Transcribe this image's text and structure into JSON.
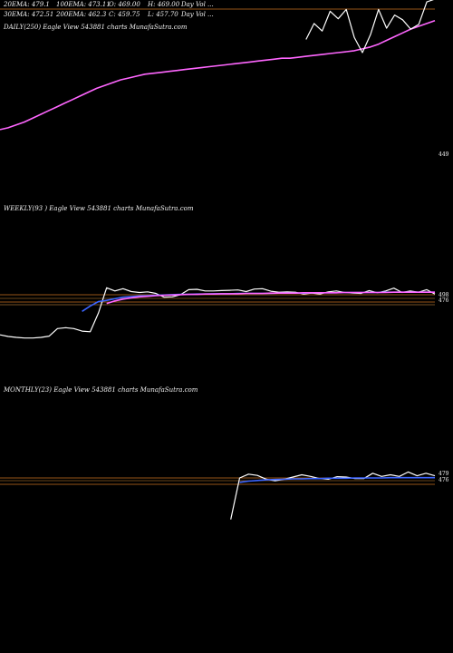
{
  "chart_data": [
    {
      "type": "line",
      "title": "DAILY(250) Eagle  View  543881 charts MunafaSutra.com",
      "legend_row1": [
        "20EMA: 479.1",
        "100EMA: 473.11",
        "O: 469.00",
        "H: 469.00",
        "Day Vol ..."
      ],
      "legend_row2": [
        "30EMA: 472.51",
        "200EMA: 462.3",
        "C: 459.75",
        "L: 457.70",
        "Day Vol ..."
      ],
      "y_tick_right": "449",
      "ylim": [
        400,
        540
      ],
      "series": [
        {
          "color": "#ff66ff",
          "values": [
            402,
            404,
            407,
            410,
            414,
            418,
            422,
            426,
            430,
            434,
            438,
            442,
            446,
            449,
            452,
            455,
            457,
            459,
            461,
            462,
            463,
            464,
            465,
            466,
            467,
            468,
            469,
            470,
            471,
            472,
            473,
            474,
            475,
            476,
            477,
            478,
            478,
            479,
            480,
            481,
            482,
            483,
            484,
            485,
            486,
            488,
            490,
            493,
            497,
            501,
            505,
            509,
            512,
            515,
            518
          ]
        },
        {
          "color": "#ffffff",
          "values": [
            null,
            null,
            null,
            null,
            null,
            null,
            null,
            null,
            null,
            null,
            null,
            null,
            null,
            null,
            null,
            null,
            null,
            null,
            null,
            null,
            null,
            null,
            null,
            null,
            null,
            null,
            null,
            null,
            null,
            null,
            null,
            null,
            null,
            null,
            null,
            null,
            null,
            null,
            498,
            515,
            507,
            528,
            520,
            530,
            500,
            484,
            503,
            530,
            510,
            524,
            519,
            509,
            514,
            538,
            541
          ]
        }
      ]
    },
    {
      "type": "line",
      "title": "WEEKLY(93                    ) Eagle  View  543881 charts MunafaSutra.com",
      "y_tick_labels": [
        "498",
        "476"
      ],
      "ylim": [
        300,
        560
      ],
      "series": [
        {
          "color": "#ffffff",
          "values": [
            360,
            355,
            352,
            350,
            350,
            352,
            356,
            380,
            383,
            380,
            372,
            370,
            430,
            510,
            500,
            507,
            498,
            495,
            497,
            492,
            480,
            481,
            488,
            504,
            505,
            500,
            500,
            501,
            502,
            503,
            498,
            506,
            507,
            499,
            496,
            497,
            496,
            490,
            493,
            490,
            497,
            500,
            495,
            493,
            492,
            501,
            494,
            500,
            509,
            495,
            500,
            496,
            504,
            490
          ]
        },
        {
          "color": "#3b64ff",
          "values": [
            null,
            null,
            null,
            null,
            null,
            null,
            null,
            null,
            null,
            null,
            435,
            452,
            466,
            470,
            475,
            480,
            482,
            484,
            485,
            486,
            487,
            488,
            489,
            489,
            490,
            490,
            491,
            491,
            491,
            492,
            492,
            492,
            492,
            492,
            493,
            493,
            493,
            493,
            494,
            494,
            494,
            494,
            495,
            495,
            495,
            495,
            495,
            496,
            496,
            496,
            496,
            496,
            496,
            496
          ]
        },
        {
          "color": "#ff66ff",
          "values": [
            null,
            null,
            null,
            null,
            null,
            null,
            null,
            null,
            null,
            null,
            null,
            null,
            null,
            460,
            468,
            474,
            478,
            481,
            483,
            485,
            486,
            487,
            488,
            489,
            489,
            490,
            490,
            491,
            491,
            491,
            492,
            492,
            492,
            493,
            493,
            493,
            493,
            494,
            494,
            494,
            494,
            494,
            495,
            495,
            495,
            495,
            495,
            495,
            496,
            496,
            496,
            496,
            496,
            496
          ]
        }
      ]
    },
    {
      "type": "line",
      "title": "MONTHLY(23) Eagle  View  543881 charts MunafaSutra.com",
      "y_tick_labels": [
        "479",
        "476"
      ],
      "ylim": [
        300,
        560
      ],
      "series": [
        {
          "color": "#ffffff",
          "values": [
            null,
            null,
            null,
            null,
            null,
            null,
            null,
            null,
            null,
            null,
            null,
            null,
            null,
            null,
            null,
            null,
            null,
            null,
            null,
            null,
            null,
            null,
            null,
            null,
            null,
            null,
            350,
            482,
            494,
            490,
            478,
            473,
            478,
            485,
            492,
            487,
            480,
            478,
            486,
            485,
            480,
            480,
            497,
            487,
            492,
            487,
            501,
            489,
            497,
            489
          ]
        },
        {
          "color": "#3b64ff",
          "values": [
            null,
            null,
            null,
            null,
            null,
            null,
            null,
            null,
            null,
            null,
            null,
            null,
            null,
            null,
            null,
            null,
            null,
            null,
            null,
            null,
            null,
            null,
            null,
            null,
            null,
            null,
            null,
            468,
            472,
            474,
            476,
            477,
            478,
            479,
            479,
            480,
            480,
            481,
            481,
            481,
            482,
            482,
            482,
            482,
            483,
            483,
            483,
            483,
            483,
            483
          ]
        }
      ]
    }
  ]
}
